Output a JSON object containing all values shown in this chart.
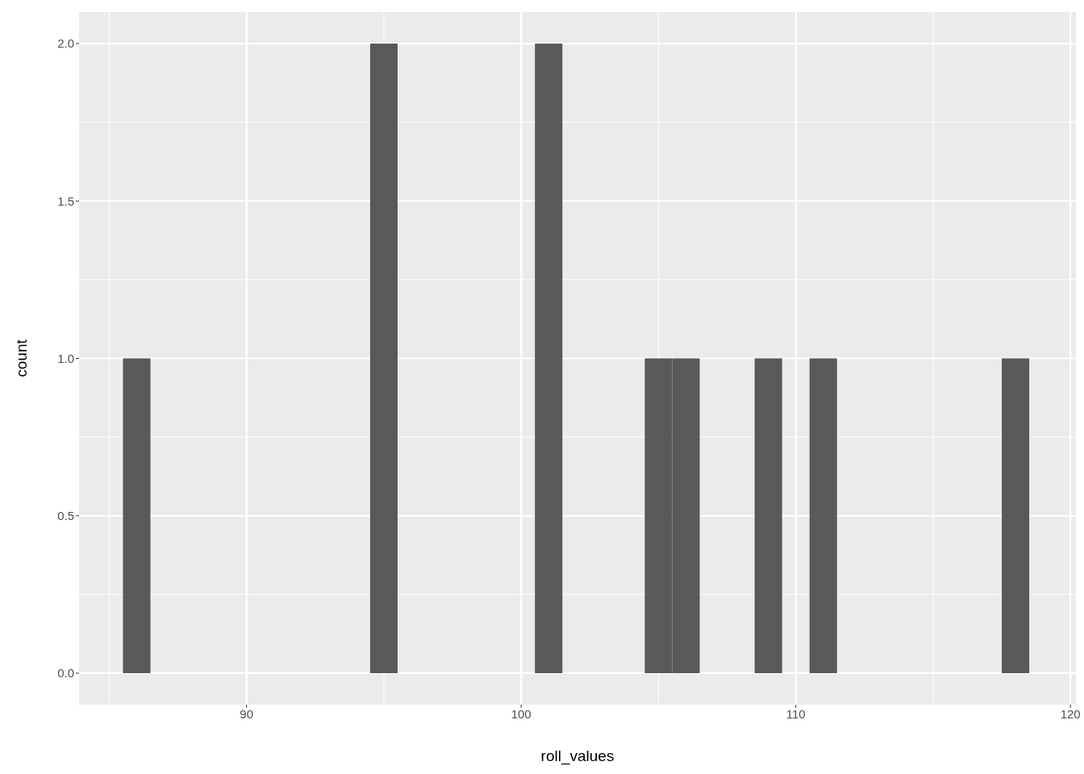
{
  "chart_data": {
    "type": "histogram",
    "xlabel": "roll_values",
    "ylabel": "count",
    "color": "#595959",
    "bins": [
      85.5,
      86.5,
      87.5,
      88.5,
      89.5,
      90.5,
      91.5,
      92.5,
      93.5,
      94.5,
      95.5,
      96.5,
      97.5,
      98.5,
      99.5,
      100.5,
      101.5,
      102.5,
      103.5,
      104.5,
      105.5,
      106.5,
      107.5,
      108.5,
      109.5,
      110.5,
      111.5,
      112.5,
      113.5,
      114.5,
      115.5,
      116.5,
      117.5,
      118.5
    ],
    "values": [
      1,
      0,
      0,
      0,
      0,
      0,
      0,
      0,
      0,
      2,
      0,
      0,
      0,
      0,
      0,
      2,
      0,
      0,
      0,
      1,
      1,
      0,
      0,
      1,
      0,
      1,
      0,
      0,
      0,
      0,
      0,
      0,
      1
    ],
    "xlim": [
      83.9,
      120.2
    ],
    "xticks": [
      90,
      100,
      110,
      120
    ],
    "ylim": [
      -0.1,
      2.1
    ],
    "yticks": [
      {
        "value": 0,
        "label": "0.0"
      },
      {
        "value": 0.5,
        "label": "0.5"
      },
      {
        "value": 1,
        "label": "1.0"
      },
      {
        "value": 1.5,
        "label": "1.5"
      },
      {
        "value": 2,
        "label": "2.0"
      }
    ],
    "grid": true
  }
}
